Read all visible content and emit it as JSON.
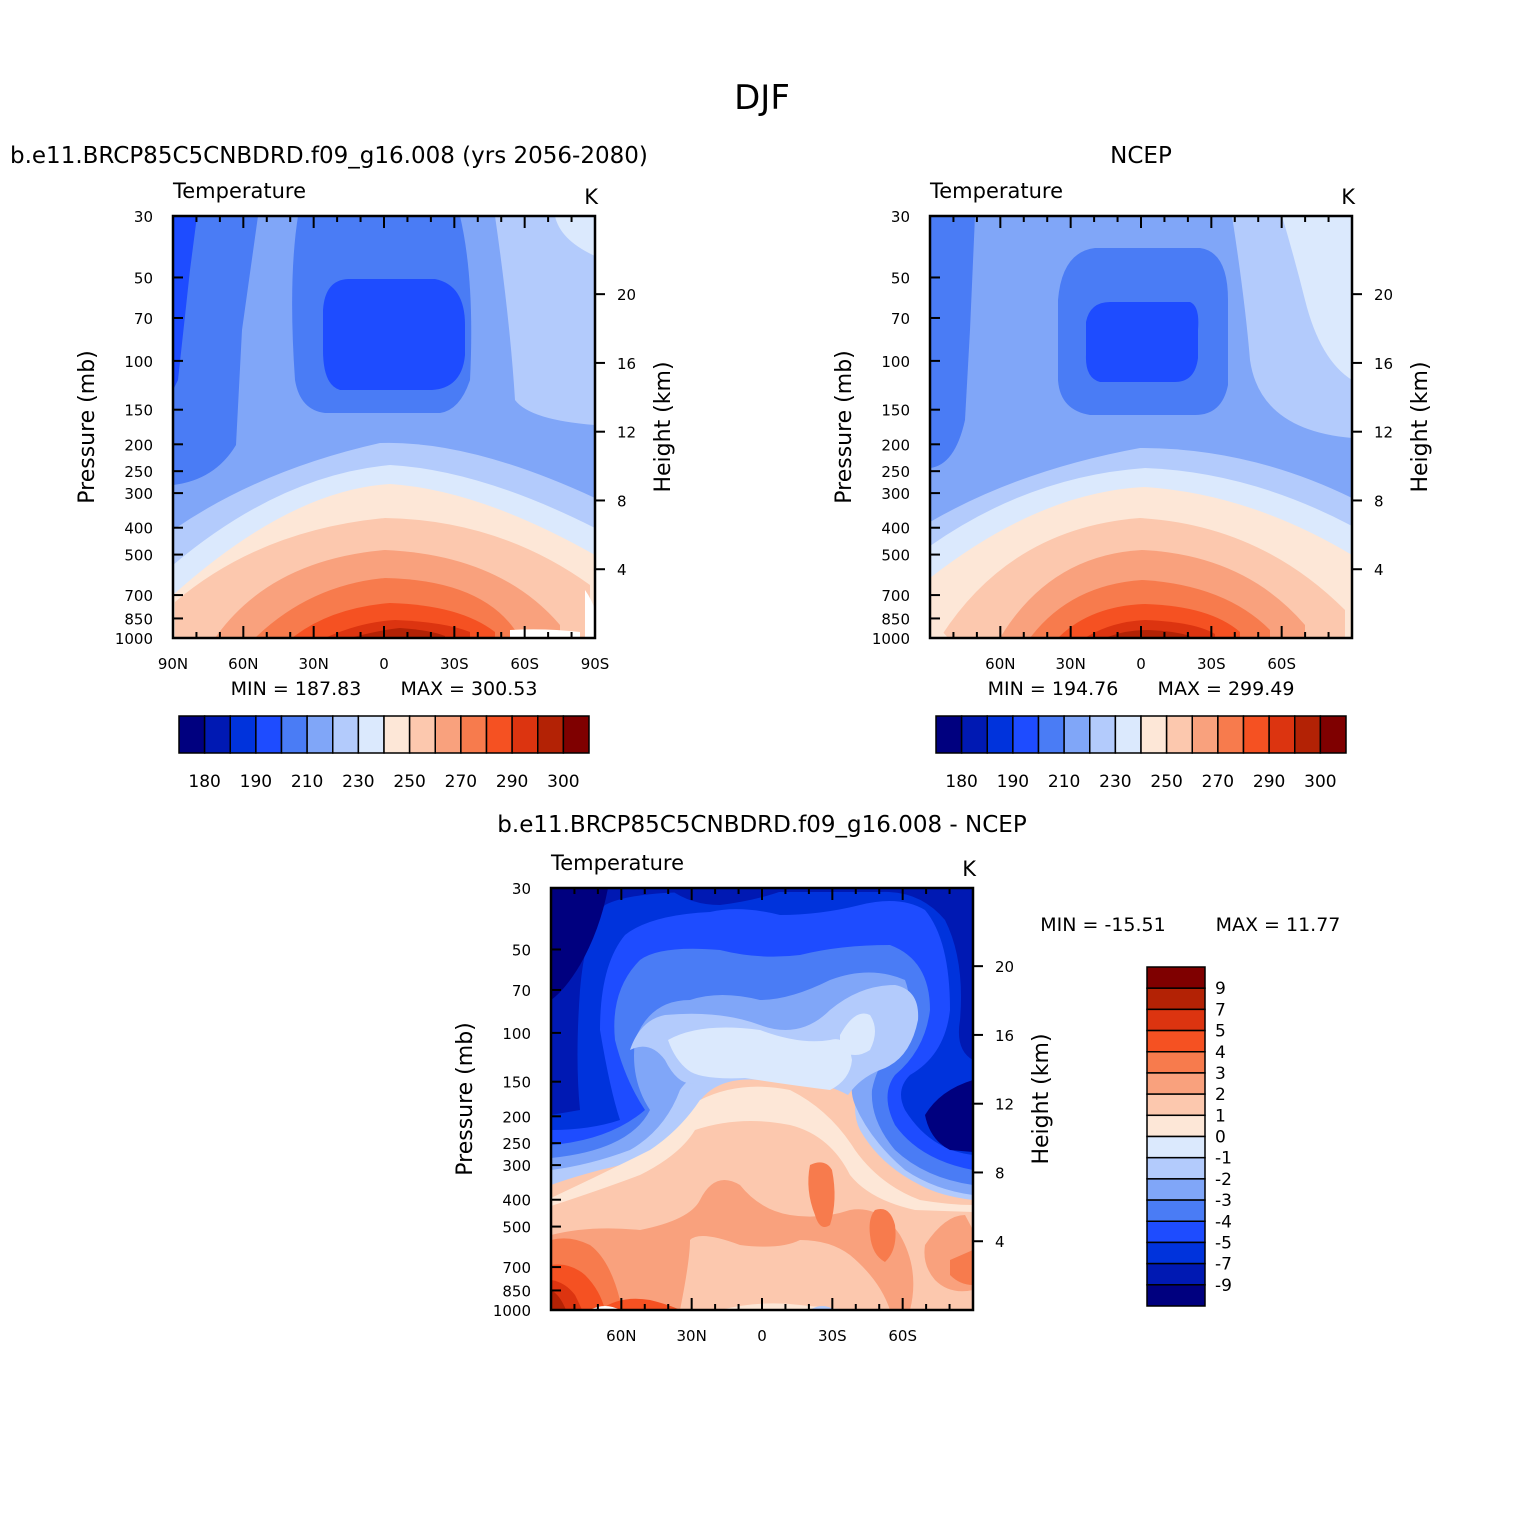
{
  "main_title": "DJF",
  "chart_data": [
    {
      "type": "contour",
      "panel": "model",
      "title": "b.e11.BRCP85C5CNBDRD.f09_g16.008 (yrs 2056-2080)",
      "left_label": "Temperature",
      "units": "K",
      "ylabel": "Pressure (mb)",
      "ylabel_right": "Height (km)",
      "x_ticks": [
        "90N",
        "60N",
        "30N",
        "0",
        "30S",
        "60S",
        "90S"
      ],
      "y_ticks": [
        "30",
        "50",
        "70",
        "100",
        "150",
        "200",
        "250",
        "300",
        "400",
        "500",
        "700",
        "850",
        "1000"
      ],
      "y_ticks_right": [
        "20",
        "16",
        "12",
        "8",
        "4"
      ],
      "xlim": [
        90,
        -90
      ],
      "ylim": [
        1000,
        30
      ],
      "y_log": true,
      "min_label": "MIN = 187.83",
      "max_label": "MAX = 300.53",
      "min": 187.83,
      "max": 300.53,
      "colorbar_ticks": [
        "180",
        "190",
        "210",
        "230",
        "250",
        "270",
        "290",
        "300"
      ],
      "grid": false
    },
    {
      "type": "contour",
      "panel": "obs",
      "title": "NCEP",
      "left_label": "Temperature",
      "units": "K",
      "ylabel": "Pressure (mb)",
      "ylabel_right": "Height (km)",
      "x_ticks": [
        "60N",
        "30N",
        "0",
        "30S",
        "60S"
      ],
      "y_ticks": [
        "30",
        "50",
        "70",
        "100",
        "150",
        "200",
        "250",
        "300",
        "400",
        "500",
        "700",
        "850",
        "1000"
      ],
      "y_ticks_right": [
        "20",
        "16",
        "12",
        "8",
        "4"
      ],
      "xlim": [
        90,
        -90
      ],
      "ylim": [
        1000,
        30
      ],
      "y_log": true,
      "min_label": "MIN = 194.76",
      "max_label": "MAX = 299.49",
      "min": 194.76,
      "max": 299.49,
      "colorbar_ticks": [
        "180",
        "190",
        "210",
        "230",
        "250",
        "270",
        "290",
        "300"
      ],
      "grid": false
    },
    {
      "type": "contour",
      "panel": "diff",
      "title": "b.e11.BRCP85C5CNBDRD.f09_g16.008 - NCEP",
      "left_label": "Temperature",
      "units": "K",
      "ylabel": "Pressure (mb)",
      "ylabel_right": "Height (km)",
      "x_ticks": [
        "60N",
        "30N",
        "0",
        "30S",
        "60S"
      ],
      "y_ticks": [
        "30",
        "50",
        "70",
        "100",
        "150",
        "200",
        "250",
        "300",
        "400",
        "500",
        "700",
        "850",
        "1000"
      ],
      "y_ticks_right": [
        "20",
        "16",
        "12",
        "8",
        "4"
      ],
      "xlim": [
        90,
        -90
      ],
      "ylim": [
        1000,
        30
      ],
      "y_log": true,
      "min_label": "MIN = -15.51",
      "max_label": "MAX = 11.77",
      "min": -15.51,
      "max": 11.77,
      "colorbar_ticks": [
        "9",
        "7",
        "5",
        "4",
        "3",
        "2",
        "1",
        "0",
        "-1",
        "-2",
        "-3",
        "-4",
        "-5",
        "-7",
        "-9"
      ],
      "colorbar_placement": "right",
      "grid": false
    }
  ],
  "palette_abs": [
    "#00007f",
    "#0019b3",
    "#0033dc",
    "#1e4cff",
    "#4a7cf5",
    "#80a6f8",
    "#b3cbfc",
    "#dbe9fd",
    "#fde7d7",
    "#fcc8ae",
    "#f9a17d",
    "#f77b4d",
    "#f55122",
    "#dc3410",
    "#b32205",
    "#7f0000"
  ],
  "palette_diff": [
    "#00007f",
    "#0019b3",
    "#0033dc",
    "#1e4cff",
    "#4a7cf5",
    "#80a6f8",
    "#b3cbfc",
    "#dbe9fd",
    "#fde7d7",
    "#fcc8ae",
    "#f9a17d",
    "#f77b4d",
    "#f55122",
    "#dc3410",
    "#b32205",
    "#7f0000"
  ]
}
